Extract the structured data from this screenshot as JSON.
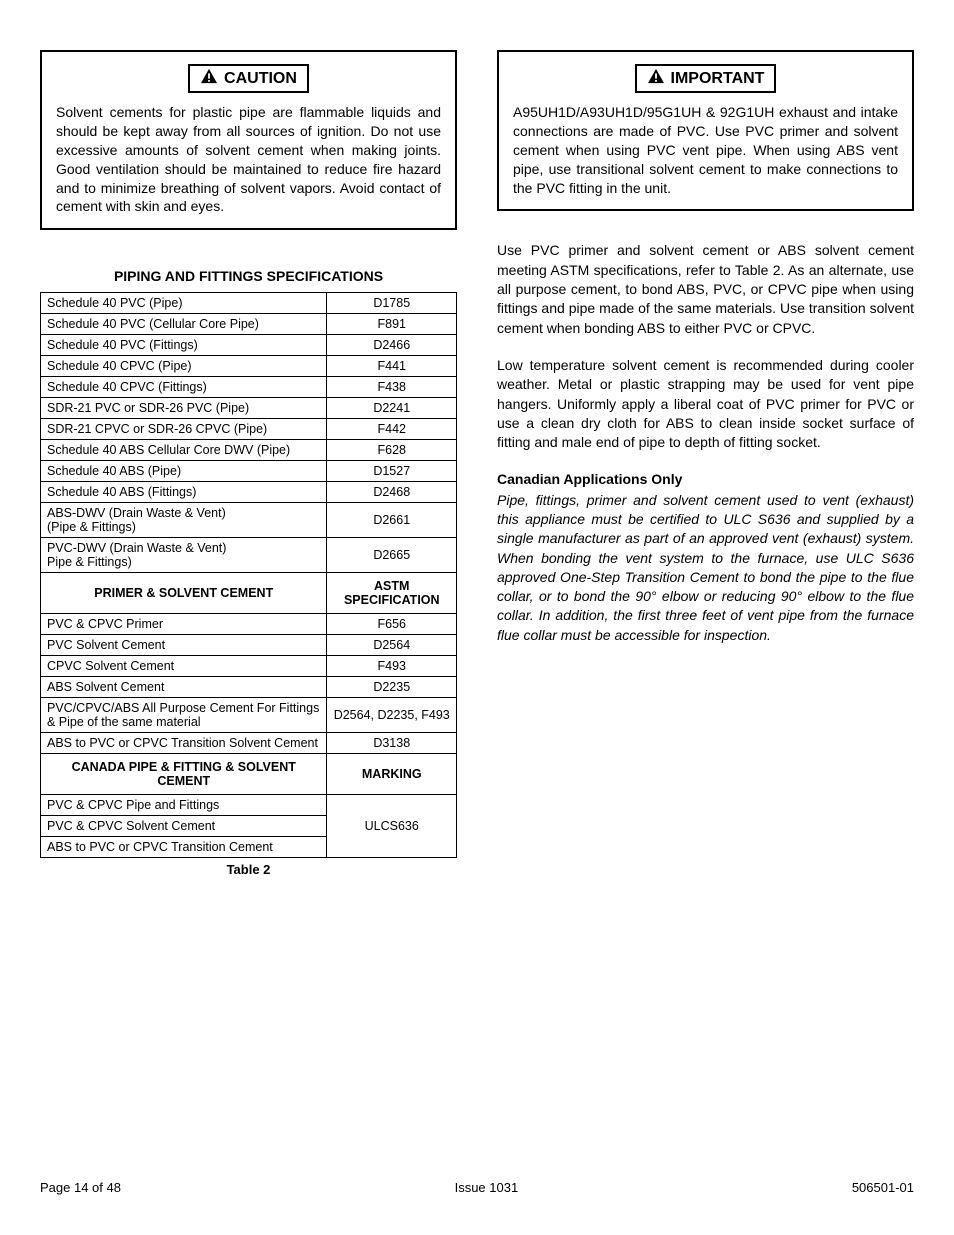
{
  "left": {
    "caution": {
      "label": "CAUTION",
      "text": "Solvent cements for plastic pipe are flammable liquids and should be kept away from all sources of ignition.  Do not use excessive amounts of solvent cement when making joints.  Good ventilation should be maintained to reduce fire hazard and to minimize breathing of solvent vapors.  Avoid contact of cement with skin and eyes."
    },
    "table_title": "PIPING AND FITTINGS SPECIFICATIONS",
    "section1_rows": [
      {
        "l": "Schedule 40 PVC (Pipe)",
        "r": "D1785"
      },
      {
        "l": "Schedule 40 PVC (Cellular Core Pipe)",
        "r": "F891"
      },
      {
        "l": "Schedule 40 PVC (Fittings)",
        "r": "D2466"
      },
      {
        "l": "Schedule 40 CPVC (Pipe)",
        "r": "F441"
      },
      {
        "l": "Schedule 40 CPVC (Fittings)",
        "r": "F438"
      },
      {
        "l": "SDR-21 PVC or SDR-26 PVC (Pipe)",
        "r": "D2241"
      },
      {
        "l": "SDR-21 CPVC or SDR-26 CPVC (Pipe)",
        "r": "F442"
      },
      {
        "l": "Schedule 40 ABS Cellular Core DWV (Pipe)",
        "r": "F628"
      },
      {
        "l": "Schedule 40 ABS (Pipe)",
        "r": "D1527"
      },
      {
        "l": "Schedule 40 ABS (Fittings)",
        "r": "D2468"
      },
      {
        "l": "ABS-DWV (Drain Waste & Vent)\n(Pipe & Fittings)",
        "r": "D2661"
      },
      {
        "l": "PVC-DWV (Drain Waste & Vent)\nPipe & Fittings)",
        "r": "D2665"
      }
    ],
    "section2_header": {
      "l": "PRIMER & SOLVENT CEMENT",
      "r": "ASTM SPECIFICATION"
    },
    "section2_rows": [
      {
        "l": "PVC & CPVC Primer",
        "r": "F656"
      },
      {
        "l": "PVC Solvent Cement",
        "r": "D2564"
      },
      {
        "l": "CPVC Solvent Cement",
        "r": "F493"
      },
      {
        "l": "ABS Solvent Cement",
        "r": "D2235"
      },
      {
        "l": "PVC/CPVC/ABS All Purpose Cement For Fittings & Pipe of the same material",
        "r": "D2564, D2235, F493"
      },
      {
        "l": "ABS to PVC or CPVC Transition Solvent Cement",
        "r": "D3138"
      }
    ],
    "section3_header": {
      "l": "CANADA PIPE & FITTING & SOLVENT CEMENT",
      "r": "MARKING"
    },
    "section3_rows": [
      {
        "l": "PVC & CPVC Pipe and Fittings"
      },
      {
        "l": "PVC & CPVC Solvent Cement"
      },
      {
        "l": "ABS to PVC or CPVC Transition Cement"
      }
    ],
    "section3_marking": "ULCS636",
    "table_caption": "Table 2"
  },
  "right": {
    "important": {
      "label": "IMPORTANT",
      "text": "A95UH1D/A93UH1D/95G1UH & 92G1UH exhaust and intake connections are made of PVC.  Use PVC primer and solvent cement when using PVC vent pipe.  When using ABS vent pipe, use transitional solvent cement to make connections to the PVC fitting in the unit."
    },
    "para1": "Use PVC primer and solvent cement or ABS solvent cement meeting ASTM specifications, refer to Table 2.  As an alternate,  use all purpose cement, to bond ABS, PVC, or CPVC pipe when using fittings and pipe made of the same materials.  Use transition solvent cement when bonding ABS to either PVC or CPVC.",
    "para2": "Low temperature solvent cement is recommended during cooler weather.  Metal or plastic strapping may be used for vent pipe hangers.  Uniformly apply a liberal coat of PVC primer for PVC or use a clean dry cloth for ABS to clean inside socket surface of fitting and male end of pipe to depth of fitting socket.",
    "subhead": "Canadian Applications Only",
    "italic": "Pipe, fittings, primer and solvent cement used to vent (exhaust) this appliance must be certified to ULC S636 and supplied by a single manufacturer as part of an approved vent (exhaust) system.  When bonding the vent system to the furnace, use ULC S636 approved One-Step Transition Cement to bond the pipe to the flue collar, or to bond the 90° elbow or reducing 90° elbow to the flue collar.  In addition, the first three feet of vent pipe from the furnace flue collar must be accessible for inspection."
  },
  "footer": {
    "left": "Page 14 of 48",
    "center": "Issue 1031",
    "right": "506501-01"
  }
}
